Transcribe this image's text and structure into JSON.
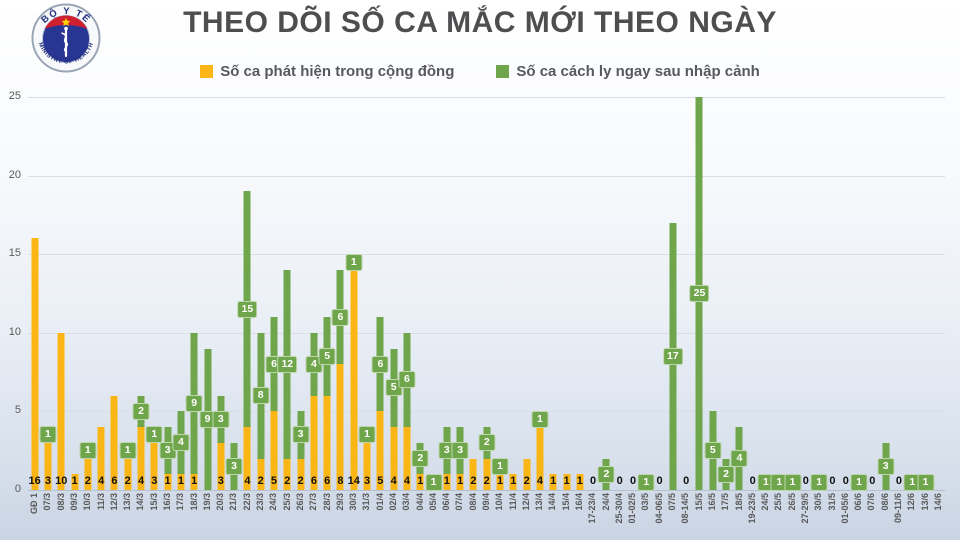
{
  "header": {
    "title": "THEO DÕI SỐ CA MẮC MỚI THEO NGÀY"
  },
  "logo": {
    "top_text": "BỘ Y TẾ",
    "bottom_text": "MINISTRY OF HEALTH"
  },
  "colors": {
    "community": "#FBB615",
    "imported": "#6FA54B",
    "title_text": "#4e4e50",
    "axis_text": "#595959",
    "value_text": "#111111",
    "gridline": "#d9dee7"
  },
  "chart_data": {
    "type": "bar",
    "stacked": true,
    "title": "THEO DÕI SỐ CA MẮC MỚI THEO NGÀY",
    "xlabel": "",
    "ylabel": "",
    "ylim": [
      0,
      25
    ],
    "yticks": [
      0,
      5,
      10,
      15,
      20,
      25
    ],
    "grid": true,
    "legend_position": "top",
    "categories": [
      "GĐ 1",
      "07/3",
      "08/3",
      "09/3",
      "10/3",
      "11/3",
      "12/3",
      "13/3",
      "14/3",
      "15/3",
      "16/3",
      "17/3",
      "18/3",
      "19/3",
      "20/3",
      "21/3",
      "22/3",
      "23/3",
      "24/3",
      "25/3",
      "26/3",
      "27/3",
      "28/3",
      "29/3",
      "30/3",
      "31/3",
      "01/4",
      "02/4",
      "03/4",
      "04/4",
      "05/4",
      "06/4",
      "07/4",
      "08/4",
      "09/4",
      "10/4",
      "11/4",
      "12/4",
      "13/4",
      "14/4",
      "15/4",
      "16/4",
      "17-23/4",
      "24/4",
      "25-30/4",
      "01-02/5",
      "03/5",
      "04-06/5",
      "07/5",
      "08-14/5",
      "15/5",
      "16/5",
      "17/5",
      "18/5",
      "19-23/5",
      "24/5",
      "25/5",
      "26/5",
      "27-29/5",
      "30/5",
      "31/5",
      "01-05/6",
      "06/6",
      "07/6",
      "08/6",
      "09-11/6",
      "12/6",
      "13/6",
      "14/6"
    ],
    "series": [
      {
        "name": "Số ca phát hiện trong cộng đồng",
        "color": "#FBB615",
        "values": [
          16,
          3,
          10,
          1,
          2,
          4,
          6,
          2,
          4,
          3,
          1,
          1,
          1,
          0,
          3,
          0,
          4,
          2,
          5,
          2,
          2,
          6,
          6,
          8,
          14,
          3,
          5,
          4,
          4,
          1,
          0,
          1,
          1,
          2,
          2,
          1,
          1,
          2,
          4,
          1,
          1,
          1,
          0,
          0,
          0,
          0,
          0,
          0,
          0,
          0,
          0,
          0,
          0,
          0,
          0,
          0,
          0,
          0,
          0,
          0,
          0,
          0,
          0,
          0,
          0,
          0,
          0,
          0,
          0
        ],
        "labels": [
          "16",
          "3",
          "10",
          "1",
          "2",
          "4",
          "6",
          "2",
          "4",
          "3",
          "1",
          "1",
          "1",
          "",
          "3",
          "",
          "4",
          "2",
          "5",
          "2",
          "2",
          "6",
          "6",
          "8",
          "14",
          "3",
          "5",
          "4",
          "4",
          "1",
          "",
          "1",
          "1",
          "2",
          "2",
          "1",
          "1",
          "2",
          "4",
          "1",
          "1",
          "1",
          "0",
          "",
          "0",
          "0",
          "",
          "0",
          "",
          "0",
          "",
          "",
          "",
          "",
          "0",
          "",
          "",
          "",
          "0",
          "",
          "0",
          "0",
          "",
          "0",
          "",
          "0",
          "",
          "",
          ""
        ]
      },
      {
        "name": "Số ca cách ly ngay sau nhập cảnh",
        "color": "#6FA54B",
        "values": [
          0,
          1,
          0,
          0,
          1,
          0,
          0,
          1,
          2,
          1,
          3,
          4,
          9,
          9,
          3,
          3,
          15,
          8,
          6,
          12,
          3,
          4,
          5,
          6,
          1,
          1,
          6,
          5,
          6,
          2,
          1,
          3,
          3,
          0,
          2,
          1,
          0,
          0,
          1,
          0,
          0,
          0,
          0,
          2,
          0,
          0,
          1,
          0,
          17,
          0,
          25,
          5,
          2,
          4,
          0,
          1,
          1,
          1,
          0,
          1,
          0,
          0,
          1,
          0,
          3,
          0,
          1,
          1,
          0
        ],
        "labels": [
          "",
          "1",
          "",
          "",
          "1",
          "",
          "",
          "1",
          "2",
          "1",
          "3",
          "4",
          "9",
          "9",
          "3",
          "3",
          "15",
          "8",
          "6",
          "12",
          "3",
          "4",
          "5",
          "6",
          "1",
          "1",
          "6",
          "5",
          "6",
          "2",
          "1",
          "3",
          "3",
          "",
          "2",
          "1",
          "",
          "",
          "1",
          "",
          "",
          "",
          "",
          "2",
          "",
          "",
          "1",
          "",
          "17",
          "",
          "25",
          "5",
          "2",
          "4",
          "",
          "1",
          "1",
          "1",
          "",
          "1",
          "",
          "",
          "1",
          "",
          "3",
          "",
          "1",
          "1",
          ""
        ]
      }
    ]
  }
}
